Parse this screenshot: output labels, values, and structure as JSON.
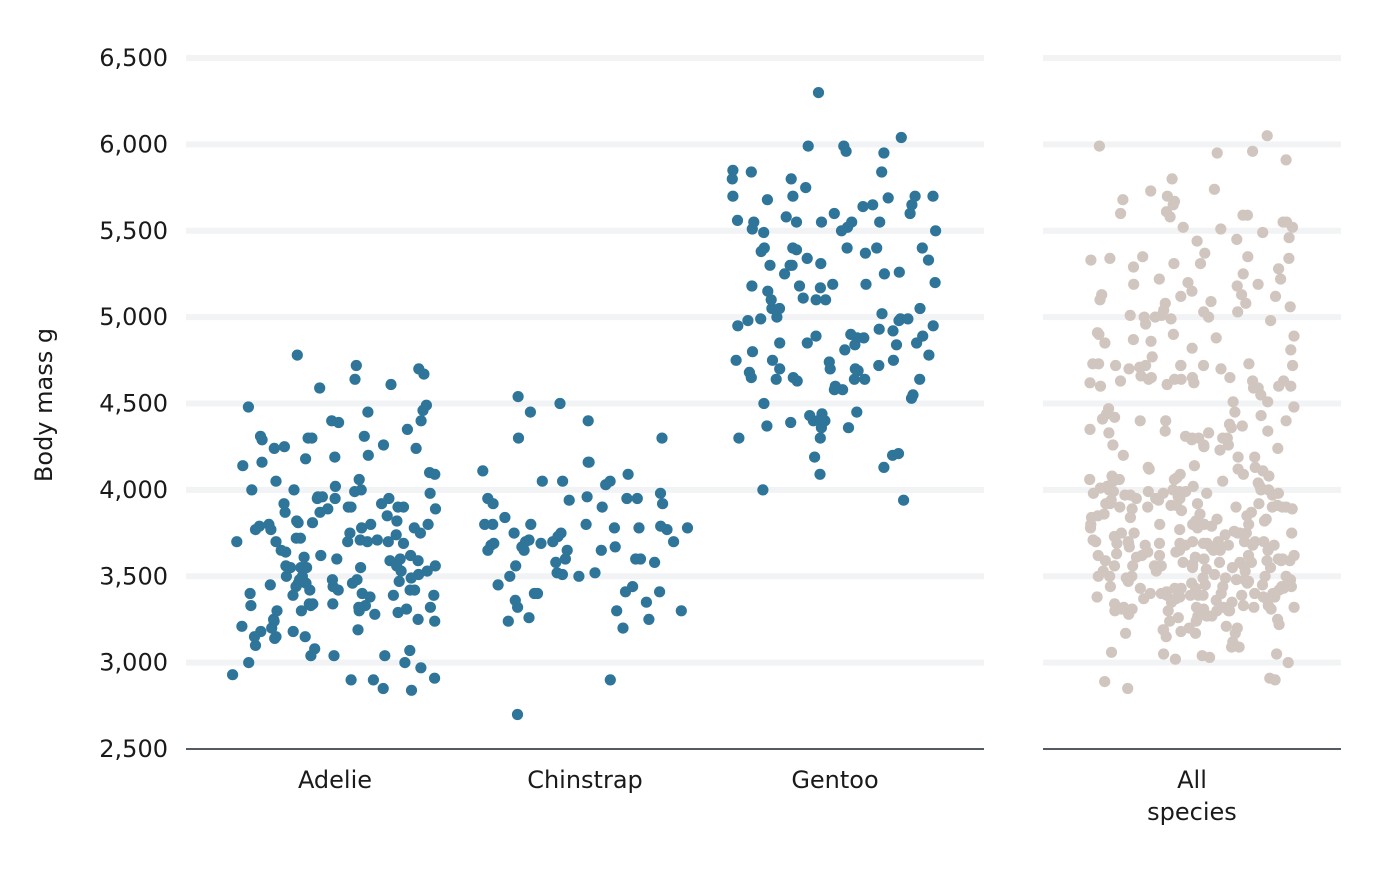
{
  "chart_data": {
    "type": "scatter",
    "ylabel": "Body mass g",
    "ylim": [
      2500,
      6500
    ],
    "y_ticks": [
      {
        "value": 2500,
        "label": "2,500"
      },
      {
        "value": 3000,
        "label": "3,000"
      },
      {
        "value": 3500,
        "label": "3,500"
      },
      {
        "value": 4000,
        "label": "4,000"
      },
      {
        "value": 4500,
        "label": "4,500"
      },
      {
        "value": 5000,
        "label": "5,000"
      },
      {
        "value": 5500,
        "label": "5,500"
      },
      {
        "value": 6000,
        "label": "6,000"
      },
      {
        "value": 6500,
        "label": "6,500"
      }
    ],
    "grid": true,
    "colors": {
      "species": "#2e7599",
      "all": "#d0c6bf",
      "axis": "#1c2433",
      "grid": "#f2f3f5"
    },
    "panels": [
      {
        "name": "species",
        "categories": [
          {
            "label": "Adelie",
            "values": [
              4490,
              3950,
              3700,
              3420,
              3990,
              3550,
              3500,
              3390,
              3340,
              3960,
              4000,
              3890,
              3740,
              4310,
              3150,
              4000,
              3950,
              4240,
              3210,
              3790,
              3040,
              4310,
              3330,
              4160,
              4100,
              4190,
              2970,
              3000,
              3310,
              3320,
              4780,
              3390,
              3690,
              3150,
              4000,
              3850,
              3870,
              3870,
              4400,
              3330,
              3040,
              4180,
              3550,
              3900,
              3810,
              3400,
              3330,
              3180,
              3100,
              4610,
              4590,
              3750,
              3190,
              3950,
              3300,
              2850,
              3720,
              3070,
              2930,
              3000,
              3620,
              4350,
              4480,
              4460,
              3640,
              3470,
              3600,
              3480,
              3250,
              3150,
              4640,
              3900,
              3400,
              3240,
              2900,
              4400,
              4140,
              3390,
              3920,
              4050,
              3750,
              3980,
              3890,
              4020,
              3290,
              3800,
              3250,
              4720,
              3720,
              4060,
              3650,
              3530,
              4090,
              3500,
              3460,
              3560,
              4300,
              3780,
              3420,
              3380,
              3780,
              4250,
              3770,
              3610,
              3710,
              2900,
              4240,
              3590,
              3440,
              3300,
              3810,
              3770,
              3600,
              3180,
              3140,
              3450,
              4200,
              3710,
              3700,
              4700,
              3820,
              3420,
              3700,
              4450,
              3820,
              4290,
              3460,
              4300,
              3080,
              3530,
              3040,
              2910,
              3920,
              3800,
              3960,
              3560,
              3620,
              4390,
              3510,
              3700,
              3700,
              3280,
              3440,
              3900,
              3200,
              3340,
              3240,
              3590,
              3300,
              3550,
              3420,
              2840,
              3480,
              4260,
              3460,
              3900,
              3490,
              3560,
              3340,
              3320,
              3800,
              3550,
              4670,
              3480
            ]
          },
          {
            "label": "Chinstrap",
            "values": [
              3690,
              3440,
              2700,
              3940,
              4160,
              3900,
              3700,
              3410,
              3980,
              3320,
              3300,
              4300,
              3240,
              4110,
              3920,
              3770,
              3500,
              3350,
              3400,
              3750,
              3260,
              3520,
              3780,
              3670,
              3580,
              3650,
              4450,
              3920,
              4160,
              3960,
              3600,
              3250,
              3500,
              3950,
              3670,
              3700,
              3710,
              3360,
              3950,
              3800,
              3730,
              3680,
              3950,
              3840,
              3780,
              3300,
              3580,
              4030,
              4050,
              3410,
              3520,
              3450,
              3690,
              4050,
              3700,
              3800,
              4300,
              3600,
              4500,
              4400,
              3510,
              3400,
              3200,
              3650,
              4540,
              3750,
              3650,
              3780,
              4090,
              3560,
              3650,
              3800,
              2900,
              4050,
              3600,
              3790,
              3800
            ]
          },
          {
            "label": "Gentoo",
            "values": [
              4840,
              4780,
              5990,
              4750,
              5840,
              5650,
              4360,
              4930,
              4980,
              4690,
              5700,
              5840,
              5390,
              5250,
              4850,
              4640,
              5400,
              4810,
              4880,
              4640,
              4740,
              4390,
              5400,
              4500,
              5990,
              5050,
              5100,
              4980,
              4950,
              4190,
              4130,
              5550,
              4750,
              5050,
              5600,
              5580,
              5850,
              5550,
              4580,
              5550,
              5750,
              4580,
              4550,
              5960,
              5500,
              4000,
              4400,
              4300,
              5700,
              5000,
              4300,
              4430,
              4850,
              4890,
              4210,
              4990,
              3940,
              5370,
              4700,
              4720,
              5340,
              4410,
              5510,
              5600,
              4440,
              5260,
              5200,
              5250,
              4920,
              5110,
              5640,
              5150,
              4700,
              4090,
              5560,
              4850,
              4400,
              5050,
              5020,
              5310,
              5330,
              5300,
              5950,
              4200,
              5380,
              4450,
              5400,
              4370,
              5500,
              4600,
              4650,
              4530,
              4360,
              4640,
              5100,
              4990,
              5690,
              5650,
              4630,
              5800,
              4840,
              5300,
              4990,
              4640,
              5300,
              4800,
              5700,
              5100,
              4750,
              5400,
              4680,
              4880,
              4950,
              5680,
              5490,
              5400,
              5700,
              5180,
              4650,
              5170,
              5520,
              5190,
              6040,
              5550,
              4890,
              5180,
              4900,
              5800,
              5190,
              6300,
              5550,
              4700
            ]
          },
          {
            "label": "All\nspecies",
            "values": [
              2850,
              3360,
              5100,
              4810,
              4700,
              4770,
              3800,
              3280,
              3590,
              3710,
              3690,
              3250,
              3170,
              4000,
              4010,
              3550,
              5520,
              4640,
              4980,
              4400,
              3920,
              4440,
              4720,
              3560,
              3600,
              5000,
              3650,
              3300,
              5580,
              3650,
              3880,
              4730,
              4600,
              3340,
              5600,
              3840,
              3430,
              3600,
              3920,
              5340,
              3430,
              3500,
              3700,
              3900,
              3630,
              3820,
              4720,
              3170,
              3700,
              3390,
              3390,
              5310,
              4710,
              2910,
              3600,
              5220,
              5090,
              3610,
              5190,
              5080,
              3500,
              4960,
              3580,
              3530,
              3750,
              4550,
              5680,
              3500,
              3750,
              4120,
              4260,
              3200,
              3910,
              5650,
              4130,
              4590,
              4350,
              5590,
              5740,
              5080,
              3680,
              3670,
              4060,
              3190,
              3690,
              3310,
              5510,
              4080,
              3450,
              5000,
              3510,
              3750,
              3270,
              4000,
              4860,
              3980,
              5370,
              3560,
              3850,
              4650,
              4370,
              3980,
              3700,
              3620,
              3050,
              5190,
              4400,
              3550,
              4090,
              5950,
              3940,
              4300,
              4110,
              3420,
              3400,
              3350,
              3050,
              4300,
              5590,
              3310,
              5910,
              3700,
              5990,
              3480,
              3680,
              3970,
              3650,
              3610,
              4140,
              4000,
              3900,
              3830,
              3760,
              3560,
              3690,
              3480,
              3540,
              3740,
              3320,
              3390,
              3570,
              3850,
              4850,
              3170,
              3350,
              4660,
              3440,
              3800,
              3500,
              4510,
              3330,
              3390,
              5610,
              4470,
              3790,
              3840,
              3990,
              3580,
              3620,
              3620,
              3690,
              3560,
              4330,
              4340,
              3900,
              5120,
              3430,
              3190,
              3250,
              4380,
              5310,
              3040,
              3260,
              3470,
              4640,
              4620,
              3550,
              3690,
              5350,
              3310,
              3060,
              3490,
              5220,
              3490,
              5010,
              3800,
              3700,
              3590,
              5550,
              3970,
              3370,
              3290,
              3900,
              4020,
              3460,
              3200,
              3320,
              3300,
              4820,
              4730,
              4880,
              5550,
              3150,
              4230,
              4990,
              5490,
              4910,
              3400,
              3990,
              5130,
              3750,
              3470,
              3860,
              3330,
              3770,
              3440,
              4340,
              4610,
              5200,
              5060,
              4720,
              4050,
              3800,
              4620,
              3900,
              3640,
              3700,
              4050,
              3750,
              4600,
              3580,
              4630,
              3380,
              3700,
              4190,
              3990,
              3530,
              5960,
              5130,
              4890,
              4700,
              3400,
              5030,
              3000,
              5670,
              4190,
              3320,
              3640,
              3300,
              3440,
              4200,
              5280,
              3820,
              4870,
              4720,
              3210,
              3030,
              3120,
              3450,
              3890,
              2900,
              4650,
              3430,
              3680,
              3240,
              5180,
              4730,
              3870,
              4360,
              3920,
              4300,
              4600,
              5030,
              5040,
              3590,
              4240,
              3980,
              4900,
              3680,
              3830,
              5150,
              4420,
              5440,
              5290,
              4450,
              5460,
              5000,
              5800,
              3980,
              4000,
              3270,
              4310,
              3960,
              4630,
              5700,
              3300,
              3180,
              3950,
              3590,
              3410,
              3020,
              4430,
              6050,
              5330,
              3970,
              4410,
              3910,
              5520,
              4900,
              4290,
              3890,
              4640,
              3750,
              4260,
              3480,
              3950,
              5350,
              3440,
              3940,
              4630,
              3380,
              3580,
              3620,
              4020,
              3240,
              4300,
              3460,
              3990,
              4120,
              3440,
              3690,
              5120,
              4720,
              4040,
              4330,
              3430,
              4510,
              3680,
              3780,
              3360,
              4060,
              4590,
              3370,
              3400,
              2890,
              4090,
              3800,
              3920,
              4060,
              3380,
              3620,
              4650,
              5340,
              4130,
              3650,
              3090,
              4250,
              3900,
              5250,
              4480,
              5010,
              3400,
              5450,
              4070,
              3090,
              4400,
              3670,
              3320,
              3860,
              4260,
              3780,
              3530,
              3730,
              3560,
              3910,
              3950,
              3490,
              4020,
              3500,
              3560,
              3380,
              3220,
              5730,
              4080,
              3270,
              3310,
              3390,
              4720,
              3300,
              3320
            ]
          }
        ]
      }
    ]
  }
}
